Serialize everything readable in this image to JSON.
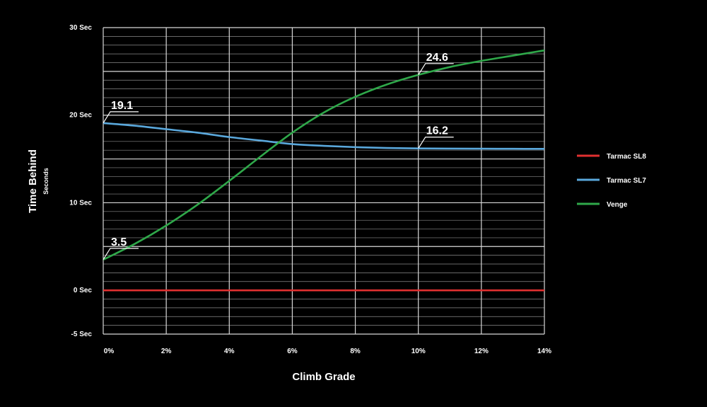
{
  "chart_data": {
    "type": "line",
    "title": "",
    "xlabel": "Climb Grade",
    "ylabel": "Time Behind",
    "ylabel_sub": "Seconds",
    "xlim": [
      0,
      14
    ],
    "ylim": [
      -5,
      30
    ],
    "grid": true,
    "legend_position": "right",
    "x_ticks": [
      {
        "value": 0,
        "label": "0%"
      },
      {
        "value": 2,
        "label": "2%"
      },
      {
        "value": 4,
        "label": "4%"
      },
      {
        "value": 6,
        "label": "6%"
      },
      {
        "value": 8,
        "label": "8%"
      },
      {
        "value": 10,
        "label": "10%"
      },
      {
        "value": 12,
        "label": "12%"
      },
      {
        "value": 14,
        "label": "14%"
      }
    ],
    "y_ticks": [
      {
        "value": 30,
        "label": "30 Sec"
      },
      {
        "value": 20,
        "label": "20 Sec"
      },
      {
        "value": 10,
        "label": "10 Sec"
      },
      {
        "value": 0,
        "label": "0 Sec"
      },
      {
        "value": -5,
        "label": "-5 Sec"
      }
    ],
    "series": [
      {
        "name": "Tarmac SL8",
        "color": "#e03030",
        "x": [
          0,
          2,
          4,
          6,
          8,
          10,
          12,
          14
        ],
        "y": [
          0,
          0,
          0,
          0,
          0,
          0,
          0,
          0
        ]
      },
      {
        "name": "Tarmac SL7",
        "color": "#5aa8dc",
        "x": [
          0,
          1,
          2,
          3,
          4,
          5,
          6,
          7,
          8,
          9,
          10,
          11,
          12,
          13,
          14
        ],
        "y": [
          19.1,
          18.8,
          18.4,
          18.0,
          17.5,
          17.1,
          16.7,
          16.5,
          16.35,
          16.25,
          16.2,
          16.18,
          16.17,
          16.16,
          16.15
        ]
      },
      {
        "name": "Venge",
        "color": "#2fa84a",
        "x": [
          0,
          1,
          2,
          3,
          4,
          5,
          6,
          7,
          8,
          9,
          10,
          11,
          12,
          13,
          14
        ],
        "y": [
          3.5,
          5.3,
          7.4,
          9.8,
          12.5,
          15.3,
          18.0,
          20.3,
          22.1,
          23.5,
          24.6,
          25.5,
          26.2,
          26.8,
          27.4
        ]
      }
    ],
    "annotations": [
      {
        "text": "19.1",
        "x": 0,
        "y": 19.1
      },
      {
        "text": "3.5",
        "x": 0,
        "y": 3.5
      },
      {
        "text": "24.6",
        "x": 10,
        "y": 24.6
      },
      {
        "text": "16.2",
        "x": 10,
        "y": 16.2
      }
    ]
  }
}
